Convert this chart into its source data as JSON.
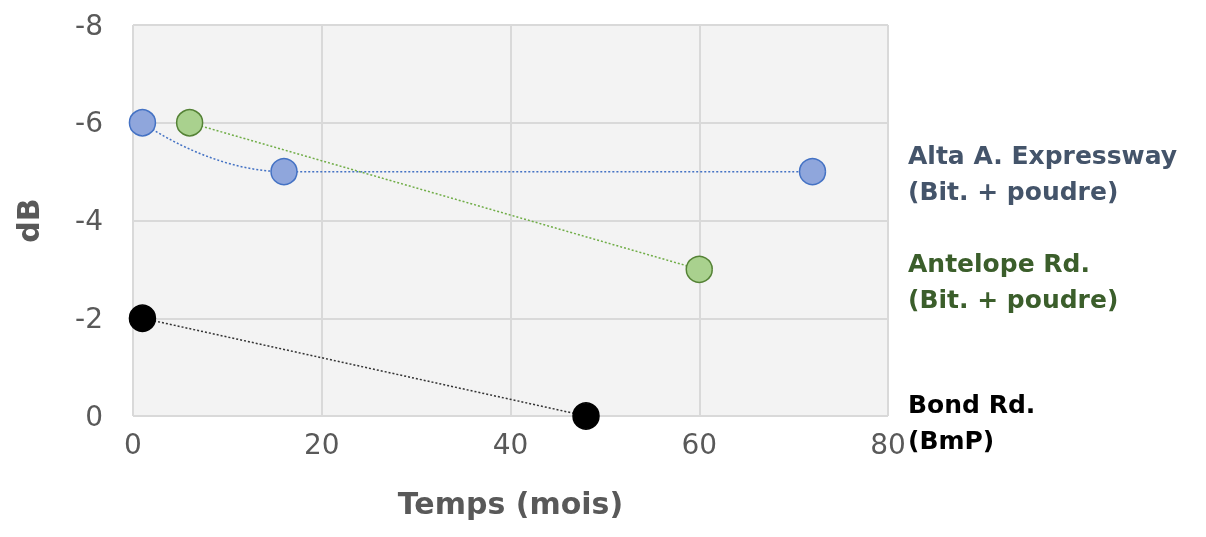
{
  "chart_data": {
    "type": "line",
    "xlabel": "Temps (mois)",
    "ylabel": "dB",
    "xlim": [
      0,
      80
    ],
    "xticks": [
      0,
      20,
      40,
      60,
      80
    ],
    "ylim": [
      0,
      -8
    ],
    "yticks": [
      0,
      -2,
      -4,
      -6,
      -8
    ],
    "grid": true,
    "legend": false,
    "marker": "circle",
    "line_style": "dotted",
    "series": [
      {
        "name": "Alta A. Expressway\n(Bit. + poudre)",
        "color": "#8fa6dc",
        "x": [
          1,
          16,
          72
        ],
        "values": [
          -6,
          -5,
          -5
        ]
      },
      {
        "name": "Antelope Rd.\n(Bit. + poudre)",
        "color": "#a9d18e",
        "x": [
          6,
          60
        ],
        "values": [
          -6,
          -3
        ]
      },
      {
        "name": "Bond Rd.\n(BmP)",
        "color": "#000000",
        "x": [
          1,
          48
        ],
        "values": [
          -2,
          0
        ]
      }
    ]
  }
}
